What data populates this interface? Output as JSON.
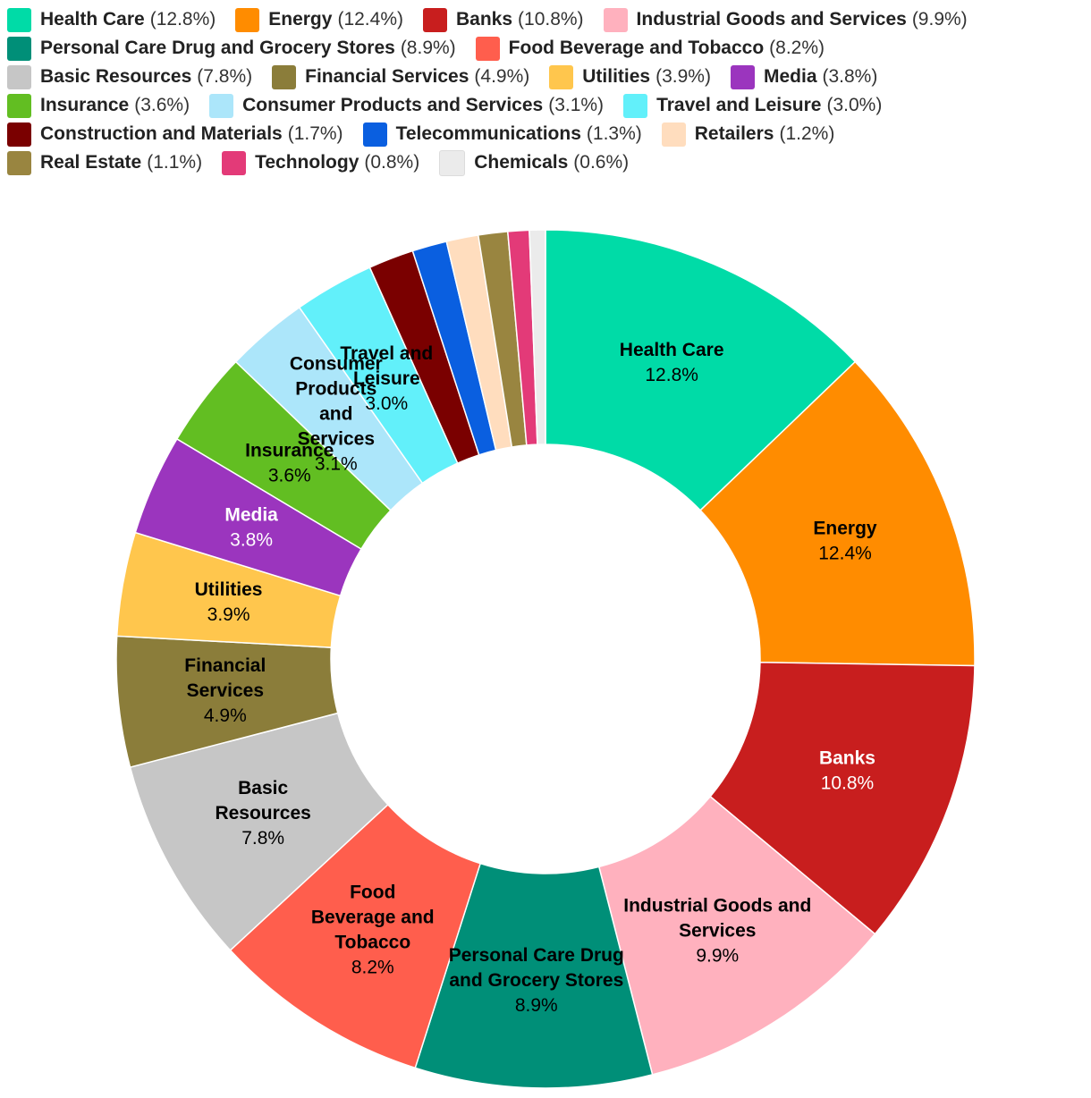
{
  "chart_data": {
    "type": "pie",
    "title": "",
    "donut": true,
    "legend_position": "top",
    "series": [
      {
        "name": "Health Care",
        "value": 12.8,
        "label": "12.8%",
        "color": "#00DBA7",
        "display_lines": [
          "Health Care"
        ],
        "label_color": "#000000"
      },
      {
        "name": "Energy",
        "value": 12.4,
        "label": "12.4%",
        "color": "#FF8C00",
        "display_lines": [
          "Energy"
        ],
        "label_color": "#000000"
      },
      {
        "name": "Banks",
        "value": 10.8,
        "label": "10.8%",
        "color": "#C81E1E",
        "display_lines": [
          "Banks"
        ],
        "label_color": "#ffffff"
      },
      {
        "name": "Industrial Goods and Services",
        "value": 9.9,
        "label": "9.9%",
        "color": "#FFB1BE",
        "display_lines": [
          "Industrial Goods and",
          "Services"
        ],
        "label_color": "#000000"
      },
      {
        "name": "Personal Care Drug and Grocery Stores",
        "value": 8.9,
        "label": "8.9%",
        "color": "#008F78",
        "display_lines": [
          "Personal Care Drug",
          "and Grocery Stores"
        ],
        "label_color": "#000000"
      },
      {
        "name": "Food Beverage and Tobacco",
        "value": 8.2,
        "label": "8.2%",
        "color": "#FF5E4D",
        "display_lines": [
          "Food",
          "Beverage and",
          "Tobacco"
        ],
        "label_color": "#000000"
      },
      {
        "name": "Basic Resources",
        "value": 7.8,
        "label": "7.8%",
        "color": "#C6C6C6",
        "display_lines": [
          "Basic",
          "Resources"
        ],
        "label_color": "#000000"
      },
      {
        "name": "Financial Services",
        "value": 4.9,
        "label": "4.9%",
        "color": "#8B7D3A",
        "display_lines": [
          "Financial",
          "Services"
        ],
        "label_color": "#000000"
      },
      {
        "name": "Utilities",
        "value": 3.9,
        "label": "3.9%",
        "color": "#FFC64D",
        "display_lines": [
          "Utilities"
        ],
        "label_color": "#000000"
      },
      {
        "name": "Media",
        "value": 3.8,
        "label": "3.8%",
        "color": "#9B35BE",
        "display_lines": [
          "Media"
        ],
        "label_color": "#ffffff"
      },
      {
        "name": "Insurance",
        "value": 3.6,
        "label": "3.6%",
        "color": "#62BE22",
        "display_lines": [
          "Insurance"
        ],
        "label_color": "#000000"
      },
      {
        "name": "Consumer Products and Services",
        "value": 3.1,
        "label": "3.1%",
        "color": "#ACE6FA",
        "display_lines": [
          "Consumer",
          "Products",
          "and",
          "Services"
        ],
        "label_color": "#000000"
      },
      {
        "name": "Travel and Leisure",
        "value": 3.0,
        "label": "3.0%",
        "color": "#62F0FA",
        "display_lines": [
          "Travel and",
          "Leisure"
        ],
        "label_color": "#000000"
      },
      {
        "name": "Construction and Materials",
        "value": 1.7,
        "label": "1.7%",
        "color": "#7A0000",
        "display_lines": [],
        "label_color": "#000000"
      },
      {
        "name": "Telecommunications",
        "value": 1.3,
        "label": "1.3%",
        "color": "#0A5FE0",
        "display_lines": [],
        "label_color": "#000000"
      },
      {
        "name": "Retailers",
        "value": 1.2,
        "label": "1.2%",
        "color": "#FFDDBE",
        "display_lines": [],
        "label_color": "#000000"
      },
      {
        "name": "Real Estate",
        "value": 1.1,
        "label": "1.1%",
        "color": "#998540",
        "display_lines": [],
        "label_color": "#000000"
      },
      {
        "name": "Technology",
        "value": 0.8,
        "label": "0.8%",
        "color": "#E33A78",
        "display_lines": [],
        "label_color": "#000000"
      },
      {
        "name": "Chemicals",
        "value": 0.6,
        "label": "0.6%",
        "color": "#EBEBEB",
        "display_lines": [],
        "label_color": "#000000"
      }
    ]
  },
  "legend": {
    "rows": [
      [
        0,
        1,
        2,
        3
      ],
      [
        4,
        5
      ],
      [
        6,
        7,
        8,
        9
      ],
      [
        10,
        11,
        12
      ],
      [
        13,
        14,
        15
      ],
      [
        16,
        17,
        18
      ]
    ]
  }
}
